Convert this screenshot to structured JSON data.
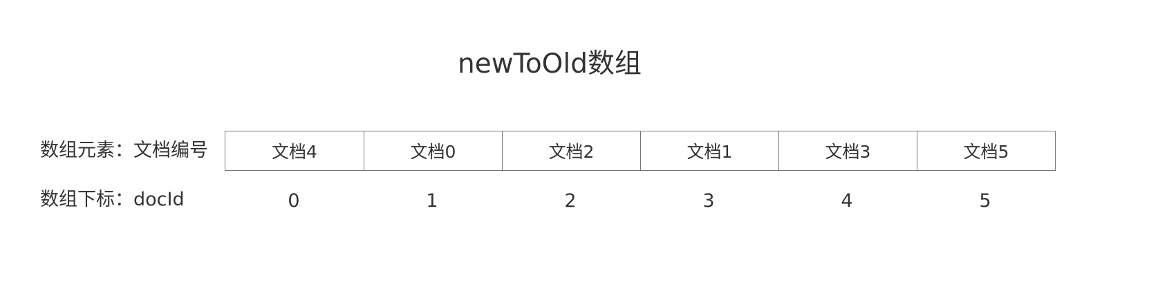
{
  "title": "newToOld数组",
  "rows": {
    "elements_label": "数组元素：文档编号",
    "indices_label": "数组下标：docId"
  },
  "array": {
    "elements": [
      "文档4",
      "文档0",
      "文档2",
      "文档1",
      "文档3",
      "文档5"
    ],
    "indices": [
      "0",
      "1",
      "2",
      "3",
      "4",
      "5"
    ]
  },
  "colors": {
    "text": "#333333",
    "border": "#757575",
    "background": "#ffffff"
  }
}
